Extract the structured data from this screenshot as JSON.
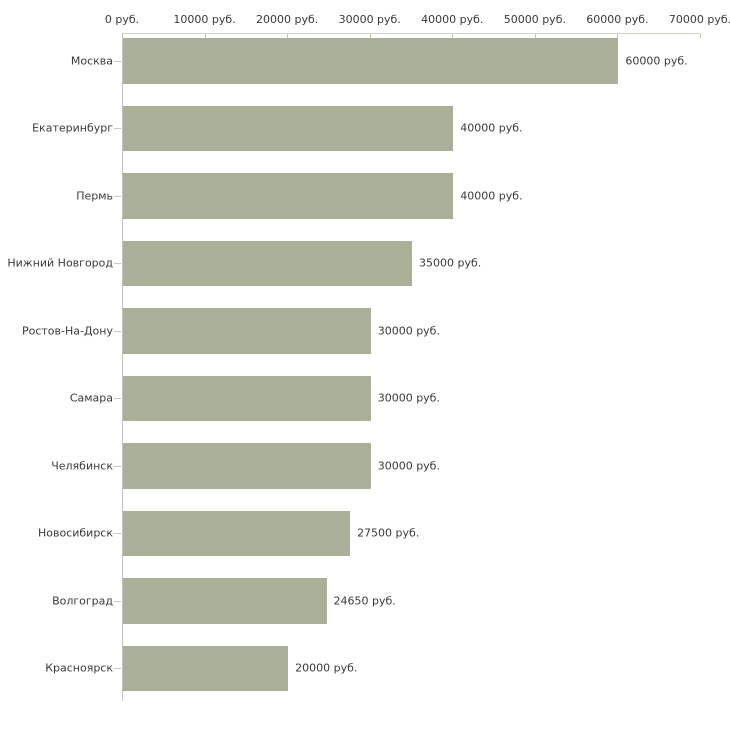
{
  "chart_data": {
    "type": "bar",
    "orientation": "horizontal",
    "title": "",
    "xlabel": "",
    "ylabel": "",
    "unit": "руб.",
    "categories": [
      "Москва",
      "Екатеринбург",
      "Пермь",
      "Нижний Новгород",
      "Ростов-На-Дону",
      "Самара",
      "Челябинск",
      "Новосибирск",
      "Волгоград",
      "Красноярск"
    ],
    "values": [
      60000,
      40000,
      40000,
      35000,
      30000,
      30000,
      30000,
      27500,
      24650,
      20000
    ],
    "value_labels": [
      "60000 руб.",
      "40000 руб.",
      "40000 руб.",
      "35000 руб.",
      "30000 руб.",
      "30000 руб.",
      "30000 руб.",
      "27500 руб.",
      "24650 руб.",
      "20000 руб."
    ],
    "x_ticks": [
      "0 руб.",
      "10000 руб.",
      "20000 руб.",
      "30000 руб.",
      "40000 руб.",
      "50000 руб.",
      "60000 руб.",
      "70000 руб."
    ],
    "x_tick_values": [
      0,
      10000,
      20000,
      30000,
      40000,
      50000,
      60000,
      70000
    ],
    "xlim": [
      0,
      70000
    ],
    "grid": false,
    "legend": false,
    "colors": {
      "bar": "#aab098",
      "x_axis_line": "#d6d3c6",
      "y_axis_line": "#c2c2c2",
      "tick": "#c6c3a9",
      "category_tick": "#cbc8b8",
      "text": "#3a3a3a",
      "background": "#ffffff"
    }
  }
}
